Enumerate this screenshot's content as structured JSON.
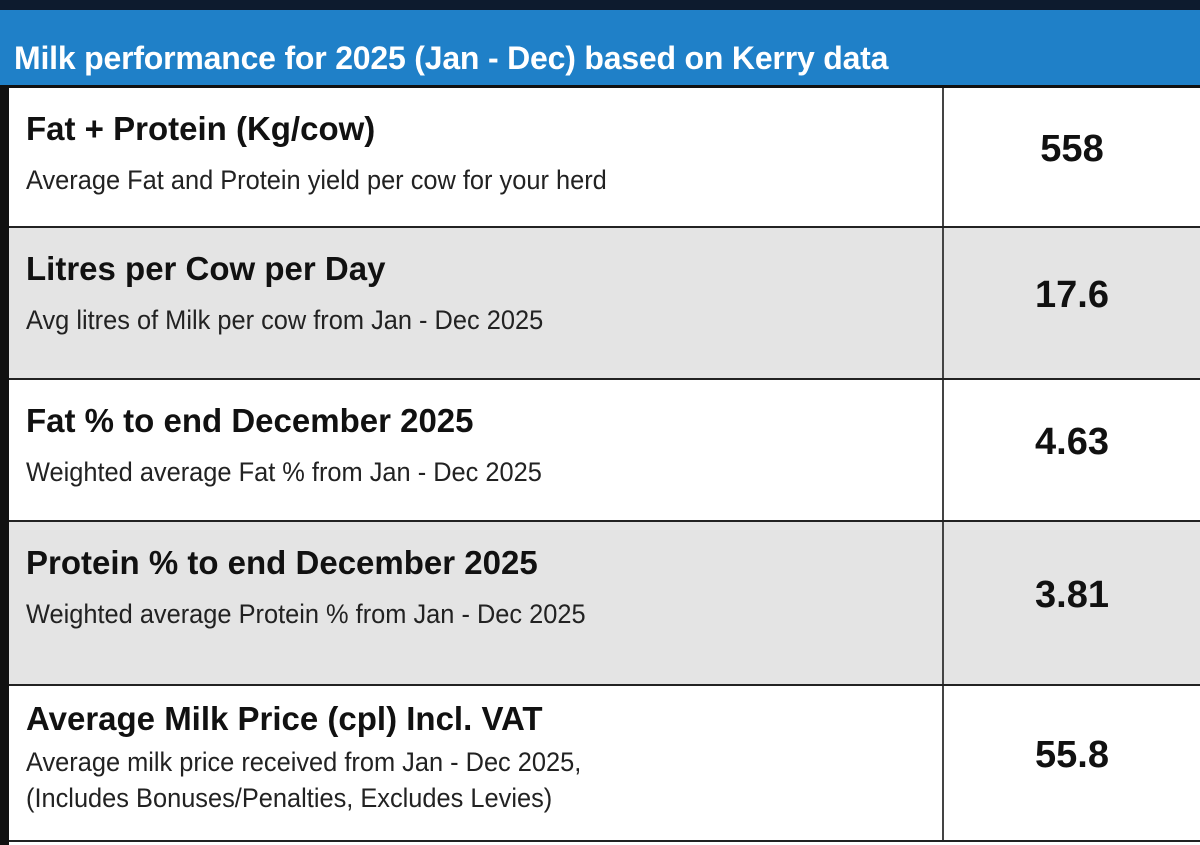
{
  "header": {
    "title": "Milk performance for 2025 (Jan - Dec) based on Kerry data"
  },
  "table": {
    "rows": [
      {
        "title": "Fat + Protein (Kg/cow)",
        "description": [
          "Average Fat and Protein yield per cow for your herd"
        ],
        "value": "558"
      },
      {
        "title": "Litres per Cow per Day",
        "description": [
          "Avg litres of Milk per cow from Jan - Dec 2025"
        ],
        "value": "17.6"
      },
      {
        "title": "Fat % to end December 2025",
        "description": [
          "Weighted average Fat % from Jan - Dec 2025"
        ],
        "value": "4.63"
      },
      {
        "title": "Protein % to end December 2025",
        "description": [
          "Weighted average Protein % from Jan - Dec 2025"
        ],
        "value": "3.81"
      },
      {
        "title": "Average Milk Price (cpl) Incl. VAT",
        "description": [
          "Average milk price received from Jan - Dec 2025,",
          "(Includes Bonuses/Penalties, Excludes Levies)"
        ],
        "value": "55.8"
      }
    ]
  }
}
